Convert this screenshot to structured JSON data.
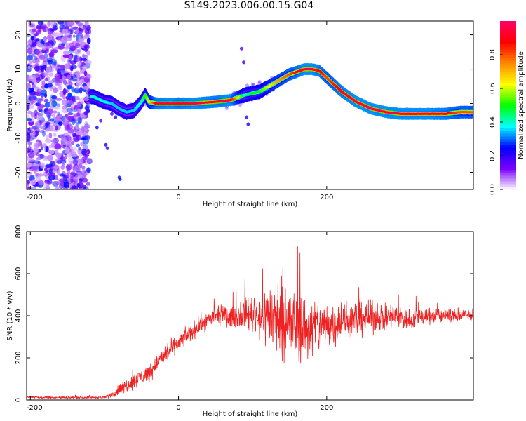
{
  "title": "S149.2023.006.00.15.G04",
  "chart_data": [
    {
      "type": "heatmap",
      "xlabel": "Height of straight line (km)",
      "ylabel": "Frequency (Hz)",
      "xlim": [
        -205,
        398
      ],
      "ylim": [
        -25,
        24
      ],
      "x_ticks": [
        -200,
        0,
        200
      ],
      "y_ticks": [
        20,
        10,
        0,
        -10,
        -20
      ],
      "colorbar": {
        "label": "Normalized spectral amplitude",
        "range": [
          0,
          1
        ],
        "ticks": [
          0.0,
          0.2,
          0.4,
          0.6,
          0.8
        ],
        "colormap": [
          "#ffffff",
          "#7a00ff",
          "#0000ff",
          "#00ffff",
          "#00ff00",
          "#ffff00",
          "#ff8800",
          "#ff0000",
          "#ff0066"
        ]
      },
      "ridge": {
        "x": [
          -115,
          -100,
          -90,
          -80,
          -70,
          -60,
          -50,
          -45,
          -40,
          -30,
          -10,
          0,
          20,
          50,
          70,
          90,
          100,
          110,
          130,
          150,
          170,
          180,
          190,
          200,
          220,
          240,
          260,
          280,
          300,
          320,
          340,
          360,
          380,
          398
        ],
        "frequency": [
          2.0,
          0.5,
          0.0,
          -1.5,
          -2.5,
          -2.0,
          0.5,
          2.5,
          0.5,
          0.0,
          0.0,
          0.0,
          0.0,
          0.5,
          1.0,
          2.5,
          3.0,
          3.5,
          6.0,
          8.5,
          10.0,
          10.0,
          9.5,
          7.5,
          3.5,
          0.5,
          -1.5,
          -2.5,
          -3.0,
          -3.0,
          -3.0,
          -3.0,
          -2.5,
          -2.5
        ],
        "amplitude": [
          0.4,
          0.4,
          0.35,
          0.35,
          0.35,
          0.35,
          0.4,
          0.5,
          0.6,
          0.9,
          0.95,
          0.9,
          0.95,
          0.9,
          0.95,
          0.4,
          0.5,
          0.5,
          0.7,
          0.8,
          0.95,
          0.95,
          0.9,
          0.8,
          0.9,
          0.95,
          0.95,
          0.95,
          0.95,
          0.95,
          0.95,
          0.9,
          0.8,
          0.8
        ]
      },
      "noise_region": {
        "x_range": [
          -205,
          -120
        ],
        "frequency_range": [
          -25,
          24
        ]
      }
    },
    {
      "type": "line",
      "xlabel": "Height of straight line (km)",
      "ylabel": "SNR (10 * v/v)",
      "xlim": [
        -205,
        398
      ],
      "ylim": [
        0,
        800
      ],
      "x_ticks": [
        -200,
        0,
        200
      ],
      "y_ticks": [
        0,
        200,
        400,
        600,
        800
      ],
      "line_color": "#ee2222",
      "series": [
        {
          "x": [
            -205,
            -180,
            -150,
            -120,
            -100,
            -90,
            -80,
            -70,
            -60,
            -50,
            -40,
            -30,
            -20,
            -10,
            0,
            10,
            20,
            30,
            40,
            50,
            60,
            70,
            80,
            90,
            100,
            110,
            120,
            130,
            140,
            150,
            160,
            170,
            180,
            190,
            200,
            210,
            220,
            230,
            240,
            250,
            260,
            270,
            280,
            290,
            300,
            310,
            320,
            330,
            340,
            350,
            360,
            370,
            380,
            390,
            398
          ],
          "y": [
            15,
            12,
            12,
            12,
            12,
            25,
            50,
            70,
            90,
            110,
            130,
            170,
            210,
            240,
            270,
            300,
            330,
            360,
            380,
            400,
            400,
            390,
            400,
            410,
            410,
            400,
            400,
            380,
            380,
            360,
            350,
            340,
            340,
            350,
            360,
            360,
            380,
            380,
            380,
            390,
            390,
            395,
            390,
            400,
            390,
            380,
            390,
            400,
            400,
            400,
            400,
            400,
            400,
            400,
            400
          ],
          "spread": [
            8,
            8,
            8,
            8,
            10,
            20,
            40,
            50,
            50,
            60,
            60,
            60,
            60,
            60,
            60,
            60,
            60,
            60,
            60,
            60,
            60,
            70,
            80,
            110,
            130,
            160,
            220,
            260,
            280,
            280,
            260,
            240,
            220,
            190,
            170,
            150,
            150,
            140,
            130,
            120,
            110,
            100,
            100,
            95,
            90,
            80,
            70,
            70,
            60,
            55,
            50,
            50,
            50,
            50,
            50
          ]
        }
      ]
    }
  ]
}
